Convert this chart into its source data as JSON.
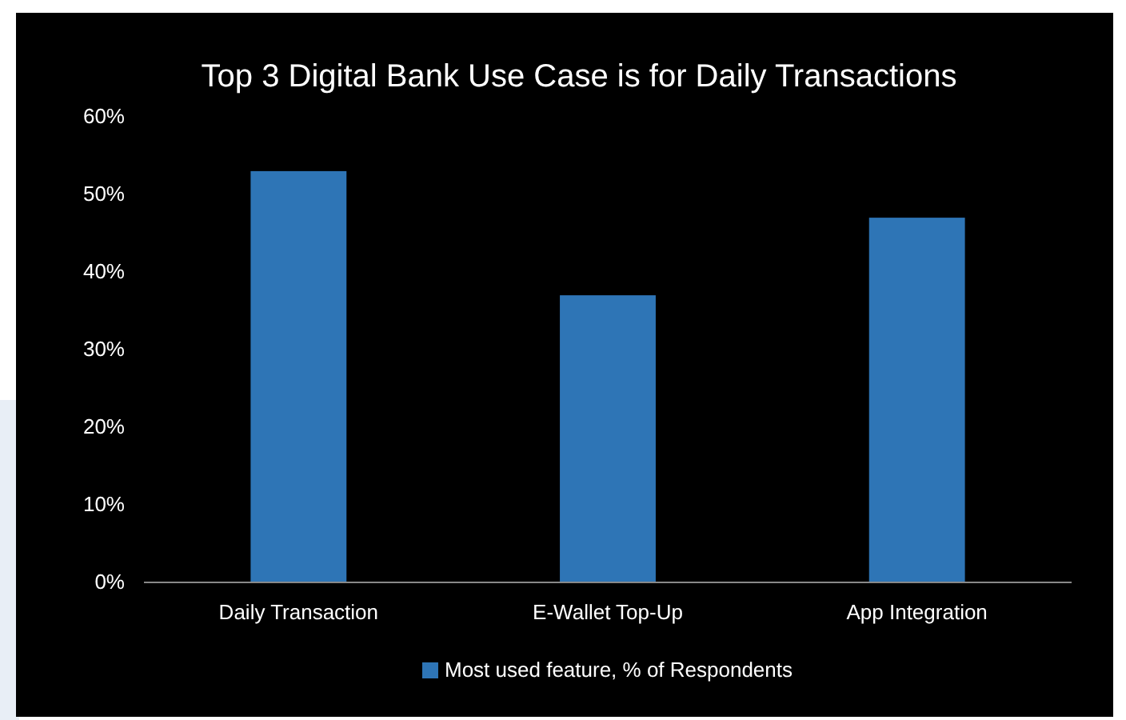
{
  "chart_data": {
    "type": "bar",
    "title": "Top 3 Digital Bank Use Case is for Daily Transactions",
    "categories": [
      "Daily Transaction",
      "E-Wallet Top-Up",
      "App Integration"
    ],
    "series": [
      {
        "name": "Most used feature, % of Respondents",
        "color": "#2e75b6",
        "values": [
          53,
          37,
          47
        ]
      }
    ],
    "ylim": [
      0,
      60
    ],
    "yticks": [
      {
        "value": 0,
        "label": "0%"
      },
      {
        "value": 10,
        "label": "10%"
      },
      {
        "value": 20,
        "label": "20%"
      },
      {
        "value": 30,
        "label": "30%"
      },
      {
        "value": 40,
        "label": "40%"
      },
      {
        "value": 50,
        "label": "50%"
      },
      {
        "value": 60,
        "label": "60%"
      }
    ],
    "grid": false,
    "legend": "bottom"
  }
}
